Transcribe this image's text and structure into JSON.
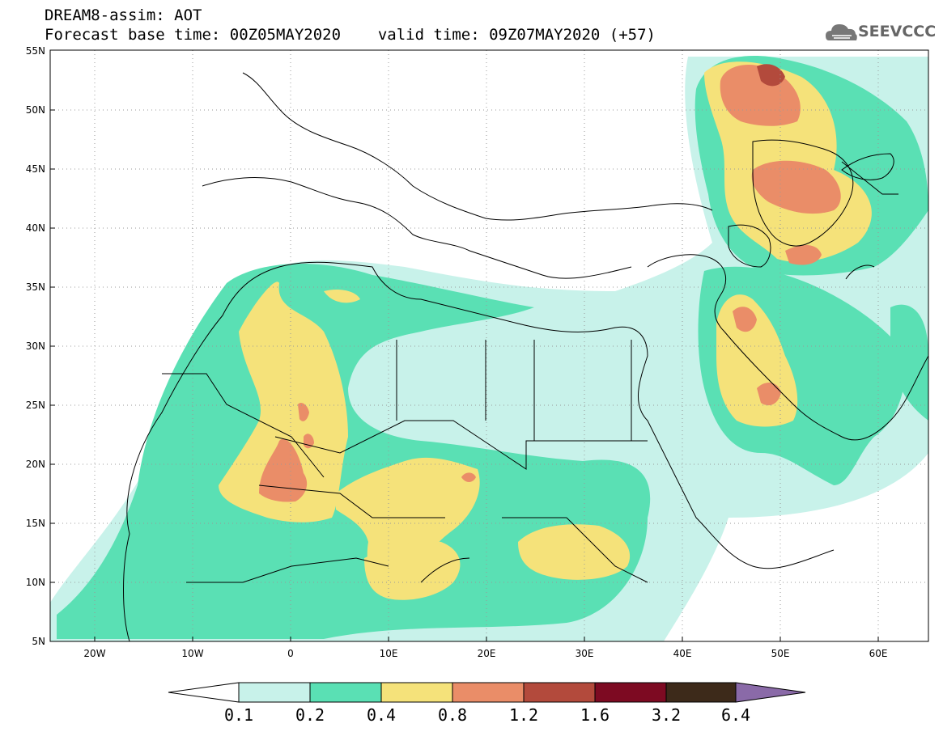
{
  "header": {
    "title": "DREAM8-assim: AOT",
    "forecast_base": "Forecast base time: 00Z05MAY2020",
    "valid_time": "valid time: 09Z07MAY2020 (+57)"
  },
  "logo": {
    "text": "SEEVCCC",
    "icon": "cloud-icon"
  },
  "map": {
    "lon_range": [
      -25,
      65
    ],
    "lat_range": [
      5,
      55
    ],
    "lon_ticks": [
      "20W",
      "10W",
      "0",
      "10E",
      "20E",
      "30E",
      "40E",
      "50E",
      "60E"
    ],
    "lat_ticks": [
      "5N",
      "10N",
      "15N",
      "20N",
      "25N",
      "30N",
      "35N",
      "40N",
      "45N",
      "50N",
      "55N"
    ],
    "grid": "dotted"
  },
  "colorbar": {
    "labels": [
      "0.1",
      "0.2",
      "0.4",
      "0.8",
      "1.2",
      "1.6",
      "3.2",
      "6.4"
    ],
    "colors": [
      "#ffffff",
      "#c8f2ea",
      "#5ae0b4",
      "#f5e27a",
      "#ea8d68",
      "#b34a3c",
      "#7d0a22",
      "#3d2a1a",
      "#8a6aa8"
    ]
  },
  "legend_colors": {
    "c1": "#c8f2ea",
    "c2": "#5ae0b4",
    "c3": "#f5e27a",
    "c4": "#ea8d68",
    "c5": "#b34a3c"
  }
}
